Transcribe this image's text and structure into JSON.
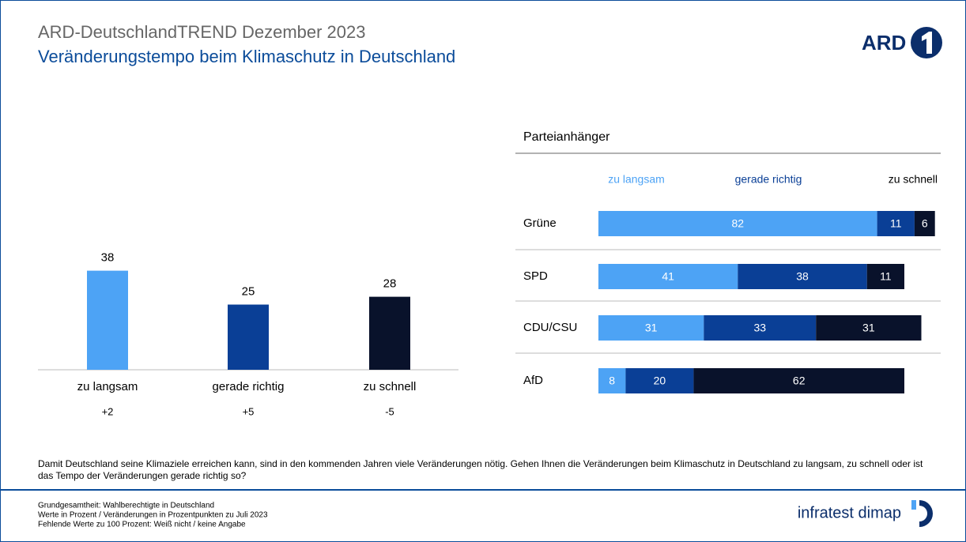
{
  "header": {
    "title": "ARD-DeutschlandTREND Dezember 2023",
    "subtitle": "Veränderungstempo beim Klimaschutz in Deutschland",
    "logo": "ARD"
  },
  "chart_data": [
    {
      "type": "bar",
      "categories": [
        "zu langsam",
        "gerade richtig",
        "zu schnell"
      ],
      "values": [
        38,
        25,
        28
      ],
      "colors": [
        "#4da3f5",
        "#0a3f96",
        "#09122b"
      ],
      "changes": [
        "+2",
        "+5",
        "-5"
      ]
    },
    {
      "type": "stacked-hbar",
      "title": "Parteianhänger",
      "categories": [
        "Grüne",
        "SPD",
        "CDU/CSU",
        "AfD"
      ],
      "series": [
        {
          "name": "zu langsam",
          "color": "#4da3f5",
          "values": [
            82,
            41,
            31,
            8
          ]
        },
        {
          "name": "gerade richtig",
          "color": "#0a3f96",
          "values": [
            11,
            38,
            33,
            20
          ]
        },
        {
          "name": "zu schnell",
          "color": "#09122b",
          "values": [
            6,
            11,
            31,
            62
          ]
        }
      ]
    }
  ],
  "question": "Damit Deutschland seine Klimaziele erreichen kann, sind in den kommenden Jahren viele Veränderungen nötig. Gehen Ihnen die Veränderungen beim Klimaschutz in Deutschland zu langsam, zu schnell oder ist das Tempo der Veränderungen gerade richtig so?",
  "footer": {
    "notes": [
      "Grundgesamtheit: Wahlberechtigte in Deutschland",
      "Werte in Prozent / Veränderungen in Prozentpunkten zu Juli 2023",
      "Fehlende Werte zu 100 Prozent: Weiß nicht / keine Angabe"
    ],
    "brand": "infratest dimap"
  }
}
